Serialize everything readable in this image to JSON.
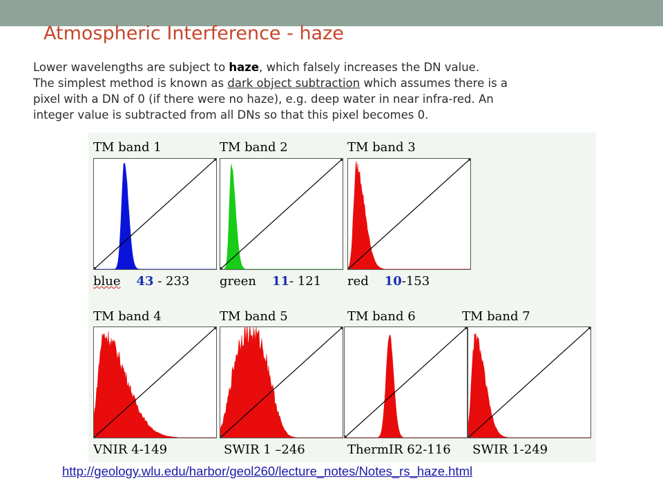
{
  "slide": {
    "title": "Atmospheric Interference - haze",
    "para1_a": "Lower wavelengths are subject to ",
    "para1_b": "haze",
    "para1_c": ", which falsely increases the DN value.",
    "para2_a": "The simplest method is known as ",
    "para2_b": "dark object subtraction",
    "para2_c": " which assumes there is a",
    "para3": "pixel with a DN of 0 (if there were no haze), e.g. deep water in near infra-red. An",
    "para4": "integer value is subtracted from all DNs so that this pixel becomes 0."
  },
  "bands": [
    {
      "title": "TM band 1",
      "caption_label": "blue",
      "caption_num": "43",
      "caption_rest": " - 233",
      "color": "#0a14d8",
      "range": [
        43,
        233
      ]
    },
    {
      "title": "TM band 2",
      "caption_label": "green",
      "caption_num": "11",
      "caption_rest": "- 121",
      "color": "#18cc18",
      "range": [
        11,
        121
      ]
    },
    {
      "title": "TM band 3",
      "caption_label": "red",
      "caption_num": "10",
      "caption_rest": "-153",
      "color": "#e80c0c",
      "range": [
        10,
        153
      ]
    },
    {
      "title": "TM band 4",
      "caption": "VNIR 4-149",
      "color": "#e80c0c",
      "range": [
        4,
        149
      ]
    },
    {
      "title": "TM band 5",
      "caption": "SWIR 1 –246",
      "color": "#e80c0c",
      "range": [
        1,
        246
      ]
    },
    {
      "title": "TM band 6",
      "caption": "ThermIR 62-116",
      "color": "#e80c0c",
      "range": [
        62,
        116
      ]
    },
    {
      "title": "TM band 7",
      "caption": "SWIR 1-249",
      "color": "#e80c0c",
      "range": [
        1,
        249
      ]
    }
  ],
  "link": "http://geology.wlu.edu/harbor/geol260/lecture_notes/Notes_rs_haze.html"
}
